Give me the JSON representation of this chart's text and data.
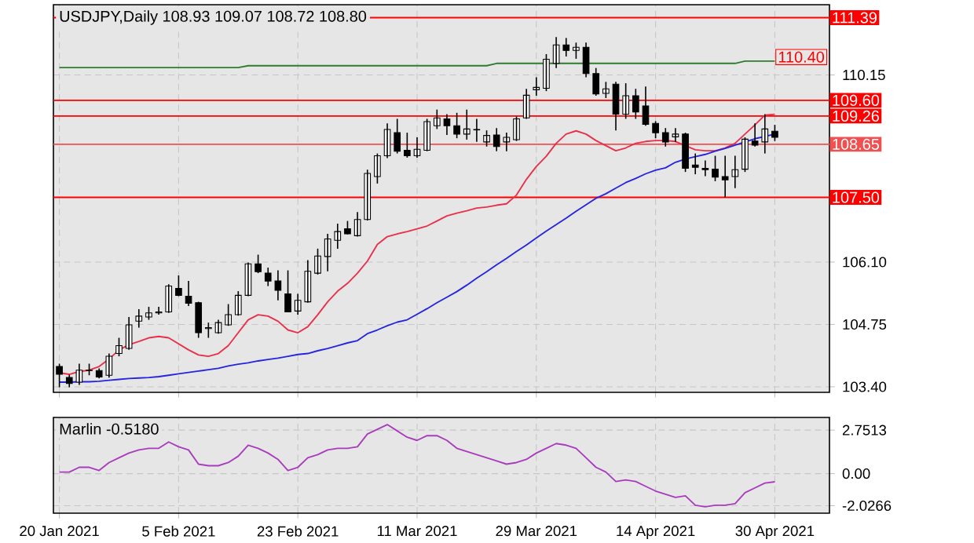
{
  "chart_data": [
    {
      "type": "candlestick",
      "title": "USDJPY,Daily 108.93 109.07 108.72 108.80",
      "categories": [
        null,
        null,
        null,
        null,
        null,
        null,
        null,
        null,
        null,
        null,
        null,
        null,
        null,
        null,
        null,
        null,
        null,
        null,
        null,
        null,
        null,
        null,
        null,
        null,
        null,
        null,
        null,
        null,
        null,
        null,
        null,
        null,
        null,
        null,
        null,
        null,
        null,
        null,
        null,
        null,
        null,
        null,
        null,
        null,
        null,
        null,
        null,
        null,
        null,
        null,
        null,
        null,
        null,
        null,
        null,
        null,
        null,
        null,
        null,
        null,
        null,
        null,
        null,
        null,
        null,
        null,
        null,
        null,
        null,
        null,
        null,
        null,
        null
      ],
      "ohlc": [
        [
          103.84,
          103.9,
          103.39,
          103.67
        ],
        [
          103.6,
          103.66,
          103.39,
          103.47
        ],
        [
          103.5,
          103.9,
          103.44,
          103.76
        ],
        [
          103.75,
          103.9,
          103.65,
          103.76
        ],
        [
          103.75,
          103.8,
          103.58,
          103.61
        ],
        [
          103.65,
          104.12,
          103.6,
          104.06
        ],
        [
          104.12,
          104.46,
          104.06,
          104.29
        ],
        [
          104.23,
          104.91,
          104.2,
          104.74
        ],
        [
          104.82,
          105.08,
          104.68,
          104.93
        ],
        [
          104.91,
          105.13,
          104.85,
          105.0
        ],
        [
          105.0,
          105.13,
          104.96,
          105.02
        ],
        [
          105.02,
          105.62,
          105.0,
          105.58
        ],
        [
          105.53,
          105.81,
          105.36,
          105.38
        ],
        [
          105.36,
          105.69,
          105.15,
          105.21
        ],
        [
          105.22,
          105.24,
          104.46,
          104.57
        ],
        [
          104.66,
          104.79,
          104.46,
          104.68
        ],
        [
          104.57,
          104.85,
          104.55,
          104.79
        ],
        [
          104.74,
          105.19,
          104.72,
          104.96
        ],
        [
          104.96,
          105.47,
          104.94,
          105.38
        ],
        [
          105.38,
          106.09,
          105.36,
          106.06
        ],
        [
          106.06,
          106.26,
          105.86,
          105.89
        ],
        [
          105.86,
          105.98,
          105.58,
          105.69
        ],
        [
          105.69,
          105.92,
          105.27,
          105.49
        ],
        [
          105.41,
          105.92,
          105.02,
          105.02
        ],
        [
          105.04,
          105.41,
          104.96,
          105.27
        ],
        [
          105.24,
          106.14,
          105.22,
          105.9
        ],
        [
          105.86,
          106.39,
          105.83,
          106.23
        ],
        [
          106.22,
          106.71,
          105.9,
          106.6
        ],
        [
          106.57,
          106.93,
          106.39,
          106.76
        ],
        [
          106.82,
          106.99,
          106.7,
          106.71
        ],
        [
          106.67,
          107.18,
          106.65,
          107.02
        ],
        [
          107.02,
          108.1,
          107.0,
          108.02
        ],
        [
          107.95,
          108.45,
          107.8,
          108.4
        ],
        [
          108.4,
          109.1,
          108.35,
          108.97
        ],
        [
          108.9,
          109.2,
          108.45,
          108.5
        ],
        [
          108.52,
          108.9,
          108.36,
          108.4
        ],
        [
          108.4,
          108.8,
          108.36,
          108.54
        ],
        [
          108.52,
          109.2,
          108.5,
          109.14
        ],
        [
          109.05,
          109.4,
          108.98,
          109.22
        ],
        [
          109.2,
          109.3,
          108.85,
          109.05
        ],
        [
          109.05,
          109.33,
          108.78,
          108.87
        ],
        [
          108.87,
          109.4,
          108.75,
          108.98
        ],
        [
          108.97,
          109.2,
          108.7,
          108.96
        ],
        [
          108.7,
          108.95,
          108.6,
          108.84
        ],
        [
          108.85,
          109.0,
          108.5,
          108.6
        ],
        [
          108.7,
          108.9,
          108.5,
          108.8
        ],
        [
          108.75,
          109.25,
          108.72,
          109.2
        ],
        [
          109.22,
          109.85,
          109.2,
          109.71
        ],
        [
          109.83,
          110.1,
          109.7,
          109.88
        ],
        [
          109.86,
          110.6,
          109.8,
          110.49
        ],
        [
          110.4,
          110.97,
          110.3,
          110.8
        ],
        [
          110.8,
          110.95,
          110.55,
          110.68
        ],
        [
          110.68,
          110.85,
          110.5,
          110.75
        ],
        [
          110.75,
          110.85,
          110.1,
          110.18
        ],
        [
          110.18,
          110.3,
          109.7,
          109.74
        ],
        [
          109.75,
          110.0,
          109.65,
          109.85
        ],
        [
          109.95,
          110.0,
          108.95,
          109.3
        ],
        [
          109.3,
          109.97,
          109.2,
          109.7
        ],
        [
          109.7,
          109.85,
          109.2,
          109.35
        ],
        [
          109.48,
          109.9,
          109.05,
          109.08
        ],
        [
          109.1,
          109.15,
          108.78,
          108.9
        ],
        [
          108.9,
          109.0,
          108.6,
          108.7
        ],
        [
          108.81,
          109.0,
          108.7,
          108.87
        ],
        [
          108.87,
          108.9,
          108.05,
          108.13
        ],
        [
          108.2,
          108.45,
          108.0,
          108.15
        ],
        [
          108.13,
          108.3,
          107.96,
          108.1
        ],
        [
          108.11,
          108.4,
          107.85,
          107.94
        ],
        [
          107.95,
          108.4,
          107.5,
          107.88
        ],
        [
          107.95,
          108.4,
          107.7,
          108.1
        ],
        [
          108.11,
          108.8,
          108.05,
          108.76
        ],
        [
          108.72,
          109.1,
          108.6,
          108.63
        ],
        [
          108.7,
          109.3,
          108.45,
          108.98
        ],
        [
          108.93,
          109.07,
          108.72,
          108.8
        ]
      ],
      "series": [
        {
          "type": "line",
          "color": "#e8304a",
          "values": [
            103.7,
            103.67,
            103.73,
            103.76,
            103.84,
            104.0,
            104.2,
            104.31,
            104.38,
            104.46,
            104.49,
            104.46,
            104.33,
            104.2,
            104.09,
            104.06,
            104.12,
            104.29,
            104.57,
            104.85,
            104.96,
            104.93,
            104.82,
            104.63,
            104.57,
            104.7,
            104.96,
            105.24,
            105.47,
            105.64,
            105.86,
            106.12,
            106.48,
            106.65,
            106.71,
            106.76,
            106.82,
            106.88,
            106.99,
            107.1,
            107.16,
            107.21,
            107.27,
            107.29,
            107.33,
            107.36,
            107.55,
            107.89,
            108.17,
            108.39,
            108.67,
            108.87,
            108.94,
            108.87,
            108.73,
            108.62,
            108.51,
            108.57,
            108.67,
            108.71,
            108.73,
            108.73,
            108.71,
            108.62,
            108.53,
            108.51,
            108.51,
            108.57,
            108.67,
            108.87,
            109.07,
            109.28,
            109.3
          ]
        },
        {
          "type": "line",
          "color": "#2525e0",
          "values": [
            103.5,
            103.5,
            103.51,
            103.51,
            103.52,
            103.54,
            103.56,
            103.58,
            103.59,
            103.6,
            103.62,
            103.65,
            103.68,
            103.71,
            103.74,
            103.77,
            103.8,
            103.85,
            103.89,
            103.92,
            103.96,
            103.99,
            104.02,
            104.06,
            104.1,
            104.12,
            104.18,
            104.23,
            104.29,
            104.35,
            104.4,
            104.55,
            104.63,
            104.72,
            104.8,
            104.85,
            104.97,
            105.09,
            105.22,
            105.34,
            105.46,
            105.6,
            105.75,
            105.89,
            106.04,
            106.18,
            106.33,
            106.47,
            106.62,
            106.77,
            106.91,
            107.05,
            107.2,
            107.34,
            107.48,
            107.58,
            107.7,
            107.82,
            107.91,
            108.01,
            108.09,
            108.14,
            108.26,
            108.33,
            108.38,
            108.43,
            108.5,
            108.56,
            108.63,
            108.7,
            108.77,
            108.82,
            108.87
          ]
        },
        {
          "type": "line",
          "color": "#2e7d2e",
          "values": [
            110.31,
            110.31,
            110.31,
            110.31,
            110.31,
            110.31,
            110.31,
            110.31,
            110.31,
            110.31,
            110.31,
            110.31,
            110.31,
            110.31,
            110.31,
            110.31,
            110.31,
            110.31,
            110.31,
            110.35,
            110.35,
            110.35,
            110.35,
            110.35,
            110.35,
            110.35,
            110.35,
            110.35,
            110.35,
            110.35,
            110.35,
            110.35,
            110.35,
            110.35,
            110.35,
            110.35,
            110.35,
            110.35,
            110.35,
            110.35,
            110.35,
            110.35,
            110.35,
            110.35,
            110.4,
            110.4,
            110.4,
            110.4,
            110.4,
            110.4,
            110.4,
            110.4,
            110.4,
            110.4,
            110.4,
            110.4,
            110.4,
            110.4,
            110.4,
            110.4,
            110.4,
            110.4,
            110.4,
            110.4,
            110.4,
            110.4,
            110.4,
            110.4,
            110.4,
            110.45,
            110.45,
            110.45,
            110.45
          ]
        }
      ],
      "ylim": [
        103.28,
        111.67
      ],
      "yticks": [
        {
          "value": 103.4,
          "label": "103.40"
        },
        104.75,
        {
          "value": 106.1,
          "label": "106.10"
        },
        110.15
      ],
      "ref_lines": [
        {
          "axis": "y",
          "value": 111.39,
          "label": "111.39",
          "color": "#ff0000"
        },
        {
          "axis": "y",
          "value": 109.6,
          "label": "109.60",
          "color": "#ff0000"
        },
        {
          "axis": "y",
          "value": 109.26,
          "label": "109.26",
          "color": "#ff0000"
        },
        {
          "axis": "y",
          "value": 108.65,
          "label": "108.65",
          "color": "#f05050"
        },
        {
          "axis": "y",
          "value": 107.5,
          "label": "107.50",
          "color": "#ff0000"
        }
      ],
      "annotations": [
        "110.40"
      ],
      "grid": true,
      "tick_labels": "y"
    },
    {
      "type": "line",
      "title": "Marlin -0.5180",
      "categories": [
        "20 Jan 2021",
        null,
        null,
        null,
        null,
        null,
        null,
        null,
        null,
        null,
        null,
        null,
        "5 Feb 2021",
        null,
        null,
        null,
        null,
        null,
        null,
        null,
        null,
        null,
        null,
        null,
        "23 Feb 2021",
        null,
        null,
        null,
        null,
        null,
        null,
        null,
        null,
        null,
        null,
        null,
        "11 Mar 2021",
        null,
        null,
        null,
        null,
        null,
        null,
        null,
        null,
        null,
        null,
        null,
        "29 Mar 2021",
        null,
        null,
        null,
        null,
        null,
        null,
        null,
        null,
        null,
        null,
        null,
        "14 Apr 2021",
        null,
        null,
        null,
        null,
        null,
        null,
        null,
        null,
        null,
        null,
        null,
        "30 Apr 2021"
      ],
      "color": "#a83cbc",
      "values": [
        0.1,
        0.1,
        0.4,
        0.4,
        0.2,
        0.7,
        1.0,
        1.3,
        1.5,
        1.6,
        1.6,
        2.0,
        1.7,
        1.5,
        0.6,
        0.5,
        0.5,
        0.7,
        1.1,
        1.8,
        1.6,
        1.3,
        0.9,
        0.2,
        0.4,
        1.0,
        1.2,
        1.5,
        1.6,
        1.6,
        1.7,
        2.5,
        2.8,
        3.1,
        2.7,
        2.3,
        2.1,
        2.4,
        2.4,
        2.1,
        1.6,
        1.4,
        1.2,
        1.0,
        0.8,
        0.6,
        0.7,
        0.9,
        1.3,
        1.6,
        1.9,
        1.8,
        1.6,
        1.0,
        0.4,
        0.1,
        -0.5,
        -0.4,
        -0.5,
        -0.8,
        -1.1,
        -1.3,
        -1.5,
        -1.4,
        -2.0,
        -2.1,
        -2.0,
        -2.0,
        -1.9,
        -1.2,
        -0.9,
        -0.6,
        -0.518
      ],
      "ylim": [
        -2.5,
        3.55
      ],
      "yticks": [
        2.7513,
        {
          "value": 0,
          "label": "0.00"
        },
        -2.0266
      ],
      "grid": true
    }
  ]
}
